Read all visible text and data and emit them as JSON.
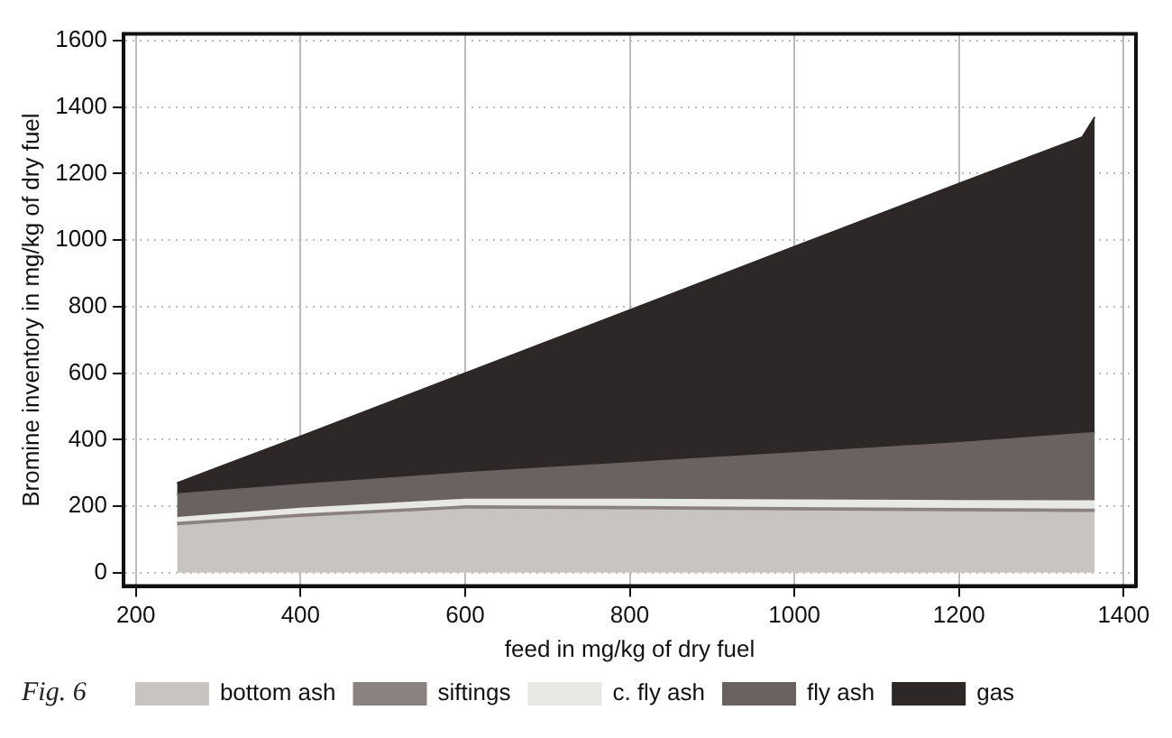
{
  "chart_data": {
    "type": "area",
    "stacked": true,
    "xlabel": "feed in mg/kg of dry fuel",
    "ylabel": "Bromine inventory in mg/kg of dry fuel",
    "x": [
      250,
      400,
      600,
      800,
      1000,
      1200,
      1350,
      1365
    ],
    "series": [
      {
        "name": "bottom ash",
        "color": "#c8c4c2",
        "values": [
          140,
          165,
          190,
          188,
          185,
          182,
          180,
          180
        ]
      },
      {
        "name": "siftings",
        "color": "#8a8280",
        "values": [
          10,
          10,
          10,
          10,
          10,
          10,
          10,
          10
        ]
      },
      {
        "name": "c. fly ash",
        "color": "#e8e8e4",
        "values": [
          15,
          18,
          20,
          22,
          23,
          24,
          25,
          25
        ]
      },
      {
        "name": "fly ash",
        "color": "#6a6260",
        "values": [
          71,
          72,
          80,
          110,
          142,
          174,
          203,
          205
        ]
      },
      {
        "name": "gas",
        "color": "#2e2728",
        "values": [
          34,
          145,
          300,
          460,
          620,
          780,
          892,
          950
        ]
      }
    ],
    "xlim": [
      185,
      1415
    ],
    "xticks": [
      200,
      400,
      600,
      800,
      1000,
      1200,
      1400
    ],
    "ylim": [
      -40,
      1620
    ],
    "yticks": [
      0,
      200,
      400,
      600,
      800,
      1000,
      1200,
      1400,
      1600
    ],
    "grid": true,
    "legend": "bottom",
    "annotations": [
      "Fig. 6"
    ]
  }
}
